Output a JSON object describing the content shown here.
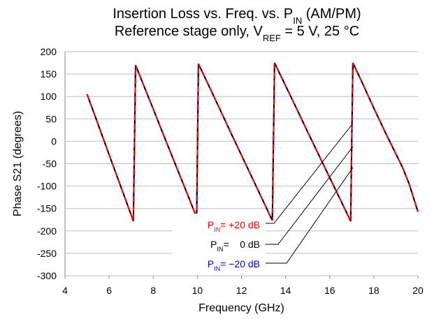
{
  "chart_data": {
    "type": "line",
    "title": [
      [
        "Insertion Loss vs. Freq. vs. P",
        "IN",
        " (AM/PM)"
      ],
      [
        "Reference stage only, V",
        "REF",
        " = 5 V, 25 °C"
      ]
    ],
    "xlabel": "Frequency (GHz)",
    "ylabel": "Phase S21 (degrees)",
    "xlim": [
      4,
      20
    ],
    "xticks": [
      4,
      6,
      8,
      10,
      12,
      14,
      16,
      18,
      20
    ],
    "ylim": [
      -300,
      200
    ],
    "yticks": [
      -300,
      -250,
      -200,
      -150,
      -100,
      -50,
      0,
      50,
      100,
      150,
      200
    ],
    "grid": true,
    "x": [
      5,
      5.5,
      6,
      6.5,
      7.1,
      7.2,
      7.5,
      8,
      8.5,
      9,
      9.5,
      9.97,
      10.05,
      10.5,
      11,
      11.5,
      12,
      12.5,
      13,
      13.4,
      13.5,
      14,
      14.5,
      15,
      15.5,
      16,
      16.5,
      16.95,
      17.05,
      17.5,
      18,
      18.5,
      19,
      19.3,
      19.6,
      20
    ],
    "series": [
      {
        "name": [
          "P",
          "IN",
          "= −20 dB"
        ],
        "color": "#0000ff",
        "dashed": false,
        "values": [
          105,
          38,
          -30,
          -97,
          -178,
          170,
          133,
          72,
          10,
          -51,
          -112,
          -170,
          173,
          126,
          74,
          21,
          -31,
          -83,
          -135,
          -177,
          175,
          124,
          73,
          21,
          -30,
          -81,
          -132,
          -178,
          175,
          128,
          74,
          22,
          -28,
          -58,
          -95,
          -157
        ]
      },
      {
        "name": [
          "P",
          "IN",
          "=    0 dB"
        ],
        "color": "#000000",
        "dashed": false,
        "values": [
          105,
          38,
          -30,
          -97,
          -178,
          170,
          133,
          72,
          10,
          -51,
          -112,
          -170,
          173,
          126,
          74,
          21,
          -31,
          -83,
          -135,
          -177,
          175,
          124,
          73,
          21,
          -30,
          -81,
          -132,
          -178,
          175,
          128,
          74,
          22,
          -28,
          -58,
          -95,
          -157
        ]
      },
      {
        "name": [
          "P",
          "IN",
          "= +20 dB"
        ],
        "color": "#ff0000",
        "dashed": true,
        "values": [
          105,
          38,
          -30,
          -97,
          -178,
          170,
          133,
          72,
          10,
          -51,
          -112,
          -170,
          173,
          126,
          74,
          21,
          -31,
          -83,
          -135,
          -177,
          175,
          124,
          73,
          21,
          -30,
          -81,
          -132,
          -178,
          175,
          128,
          74,
          22,
          -28,
          -58,
          -95,
          -157
        ]
      }
    ]
  }
}
